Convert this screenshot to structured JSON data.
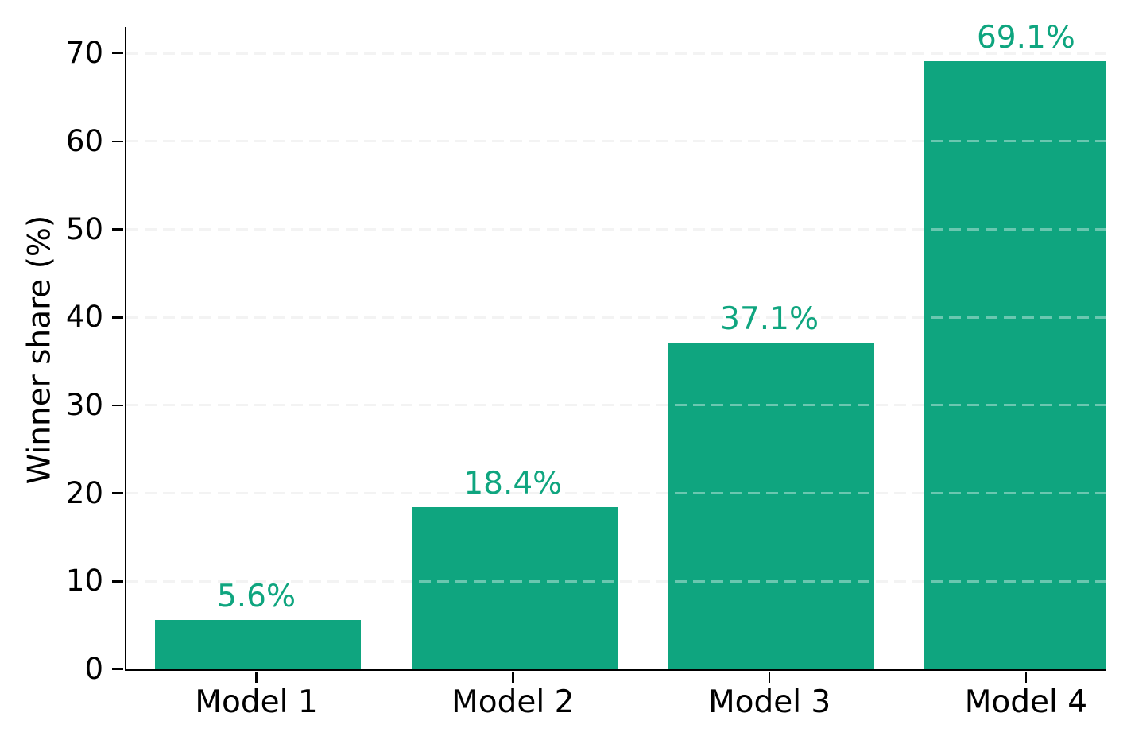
{
  "figure": {
    "background": "#ffffff"
  },
  "chart_data": {
    "type": "bar",
    "categories": [
      "Model 1",
      "Model 2",
      "Model 3",
      "Model 4"
    ],
    "values": [
      5.6,
      18.4,
      37.1,
      69.1
    ],
    "value_labels": [
      "5.6%",
      "18.4%",
      "37.1%",
      "69.1%"
    ],
    "title": "",
    "xlabel": "",
    "ylabel": "Winner share (%)",
    "yticks": [
      0,
      10,
      20,
      30,
      40,
      50,
      60,
      70
    ],
    "ytick_labels": [
      "0",
      "10",
      "20",
      "30",
      "40",
      "50",
      "60",
      "70"
    ],
    "ylim": [
      0,
      73
    ],
    "grid": "horizontal-dashed",
    "legend": "none",
    "colors": {
      "bar": "#0fa57f",
      "value_label": "#0fa57f",
      "axis": "#000000",
      "grid": "#ececec",
      "tick_label": "#000000"
    }
  }
}
